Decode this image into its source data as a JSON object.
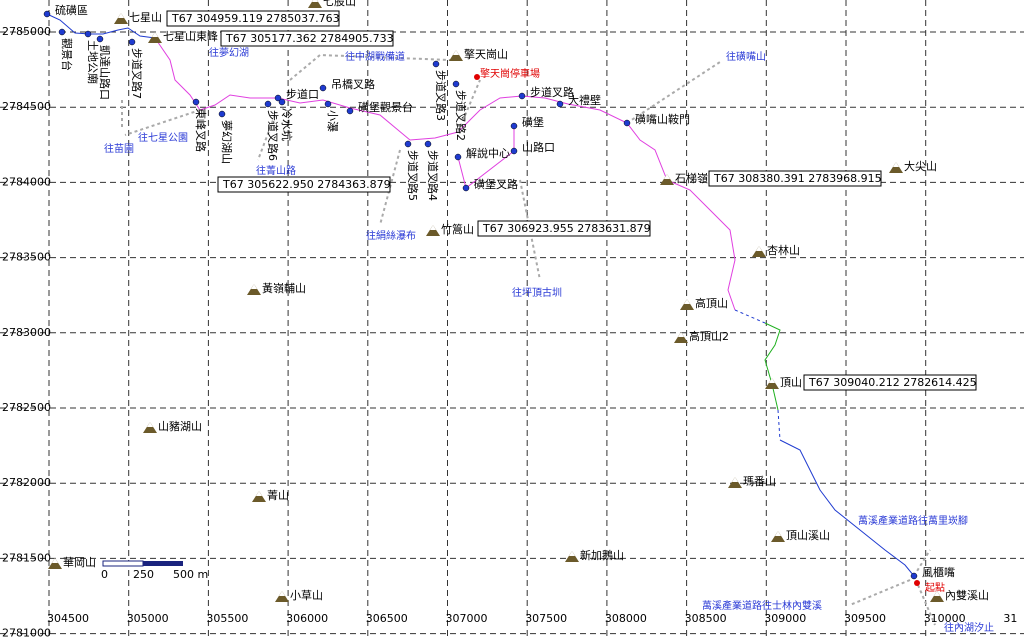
{
  "map": {
    "x_ticks": [
      "304500",
      "305000",
      "305500",
      "306000",
      "306500",
      "307000",
      "307500",
      "308000",
      "308500",
      "309000",
      "309500",
      "310000",
      "31"
    ],
    "y_ticks": [
      "2785000",
      "2784500",
      "2784000",
      "2783500",
      "2783000",
      "2782500",
      "2782000",
      "2781500",
      "2781000"
    ],
    "peaks": [
      "七星山",
      "七股山",
      "七星山東峰",
      "擎天崗山",
      "大尖山",
      "石梯嶺",
      "竹篙山",
      "杏林山",
      "黃嶺輔山",
      "高頂山",
      "高頂山2",
      "頂山",
      "山豬湖山",
      "瑪番山",
      "菁山",
      "頂山溪山",
      "華岡山",
      "新加鵝山",
      "小草山",
      "內雙溪山"
    ],
    "waypoints": [
      "硫磺區",
      "步道口",
      "吊橋叉路",
      "磺堡觀景台",
      "步道叉路",
      "大禮壁",
      "磺嘴山鞍門",
      "磺堡",
      "山路口",
      "解說中心",
      "磺堡叉路",
      "風櫃嘴"
    ],
    "vertical_labels": [
      "觀景台",
      "土地公廟",
      "凱達山路口",
      "步道叉路7",
      "東峰叉路",
      "夢幻湖山",
      "冷水坑",
      "步道叉路6",
      "小瀑",
      "步道叉路3",
      "步道叉路2",
      "步道叉路4",
      "步道叉路5"
    ],
    "coordinate_boxes": [
      "T67  304959.119    2785037.763",
      "T67  305177.362    2784905.733",
      "T67  305622.950    2784363.879",
      "T67  306923.955    2783631.879",
      "T67  308380.391    2783968.915",
      "T67  309040.212    2782614.425"
    ],
    "notes": [
      "往夢幻湖",
      "往中湖戰備道",
      "往磺嘴山",
      "往七星公園",
      "往苗圃",
      "往菁山路",
      "往絹絲瀑布",
      "往坪頂古圳",
      "萬溪產業道路往萬里崁腳",
      "萬溪產業道路往士林內雙溪",
      "往內湖汐止"
    ],
    "red_notes": [
      "擎天崗停車場",
      "起點"
    ],
    "scale": [
      "0",
      "250",
      "500 m"
    ]
  }
}
